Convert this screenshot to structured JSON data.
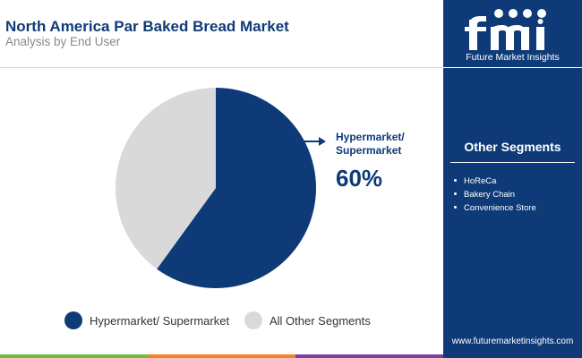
{
  "header": {
    "title": "North America Par Baked Bread Market",
    "subtitle": "Analysis by End User"
  },
  "brand": {
    "logo_text": "fmi",
    "tagline": "Future Market Insights",
    "website": "www.futuremarketinsights.com"
  },
  "sidebar": {
    "title": "Other Segments",
    "items": [
      "HoReCa",
      "Bakery Chain",
      "Convenience Store"
    ]
  },
  "annotation": {
    "label_line1": "Hypermarket/",
    "label_line2": "Supermarket",
    "value_text": "60%"
  },
  "legend": {
    "item1": "Hypermarket/ Supermarket",
    "item2": "All Other Segments"
  },
  "colors": {
    "primary": "#0e3b78",
    "other": "#d9d9d9",
    "bar_green": "#6bbf3c",
    "bar_orange": "#f58220",
    "bar_purple": "#7b3fa0"
  },
  "chart_data": {
    "type": "pie",
    "title": "North America Par Baked Bread Market",
    "subtitle": "Analysis by End User",
    "slices": [
      {
        "label": "Hypermarket/ Supermarket",
        "value": 60,
        "color": "#0e3b78"
      },
      {
        "label": "All Other Segments",
        "value": 40,
        "color": "#d9d9d9"
      }
    ],
    "start_angle_deg": 0,
    "direction": "clockwise",
    "legend_position": "bottom"
  }
}
